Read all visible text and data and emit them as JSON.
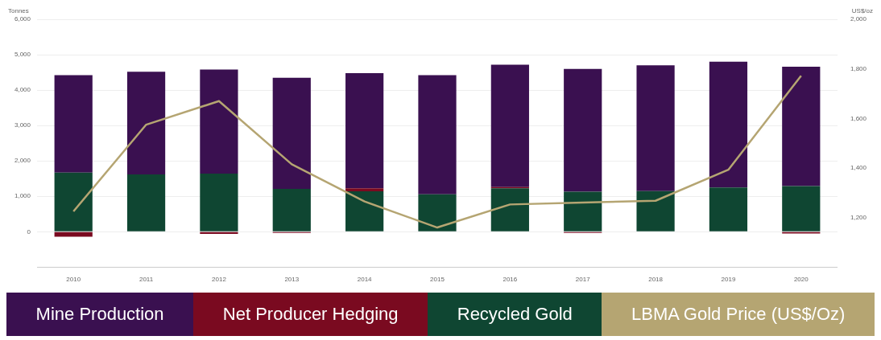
{
  "chart_data": {
    "type": "bar",
    "stacked": true,
    "ylabel": "Tonnes",
    "y2label": "US$/oz",
    "categories": [
      "2010",
      "2011",
      "2012",
      "2013",
      "2014",
      "2015",
      "2016",
      "2017",
      "2018",
      "2019",
      "2020"
    ],
    "series": [
      {
        "name": "Recycled Gold",
        "color": "#0f4632",
        "values": [
          1670,
          1620,
          1640,
          1210,
          1140,
          1060,
          1230,
          1130,
          1150,
          1250,
          1290
        ]
      },
      {
        "name": "Net Producer Hedging",
        "color": "#7a0a20",
        "values": [
          -140,
          0,
          -60,
          -30,
          90,
          0,
          30,
          -30,
          -10,
          0,
          -50
        ]
      },
      {
        "name": "Mine Production",
        "color": "#3a1050",
        "values": [
          2750,
          2900,
          2940,
          3140,
          3250,
          3360,
          3460,
          3470,
          3550,
          3550,
          3370
        ]
      },
      {
        "name": "LBMA Gold Price (US$/Oz)",
        "type": "line",
        "axis": "y2",
        "color": "#b5a572",
        "values": [
          1225,
          1575,
          1670,
          1415,
          1265,
          1160,
          1253,
          1261,
          1268,
          1393,
          1772
        ]
      }
    ],
    "ylim": [
      -1000,
      6000
    ],
    "yticks": [
      0,
      {
        "value": 1000,
        "label": "1,000"
      },
      {
        "value": 2000,
        "label": "2,000"
      },
      {
        "value": 3000,
        "label": "3,000"
      },
      {
        "value": 4000,
        "label": "4,000"
      },
      {
        "value": 5000,
        "label": "5,000"
      },
      {
        "value": 6000,
        "label": "6,000"
      }
    ],
    "y2lim": [
      1000,
      2000
    ],
    "y2ticks": [
      {
        "value": 1200,
        "label": "1,200"
      },
      {
        "value": 1400,
        "label": "1,400"
      },
      {
        "value": 1600,
        "label": "1,600"
      },
      {
        "value": 1800,
        "label": "1,800"
      },
      {
        "value": 2000,
        "label": "2,000"
      }
    ],
    "grid": "y",
    "legend": "bottom",
    "marker": "none",
    "line_style": "solid"
  }
}
